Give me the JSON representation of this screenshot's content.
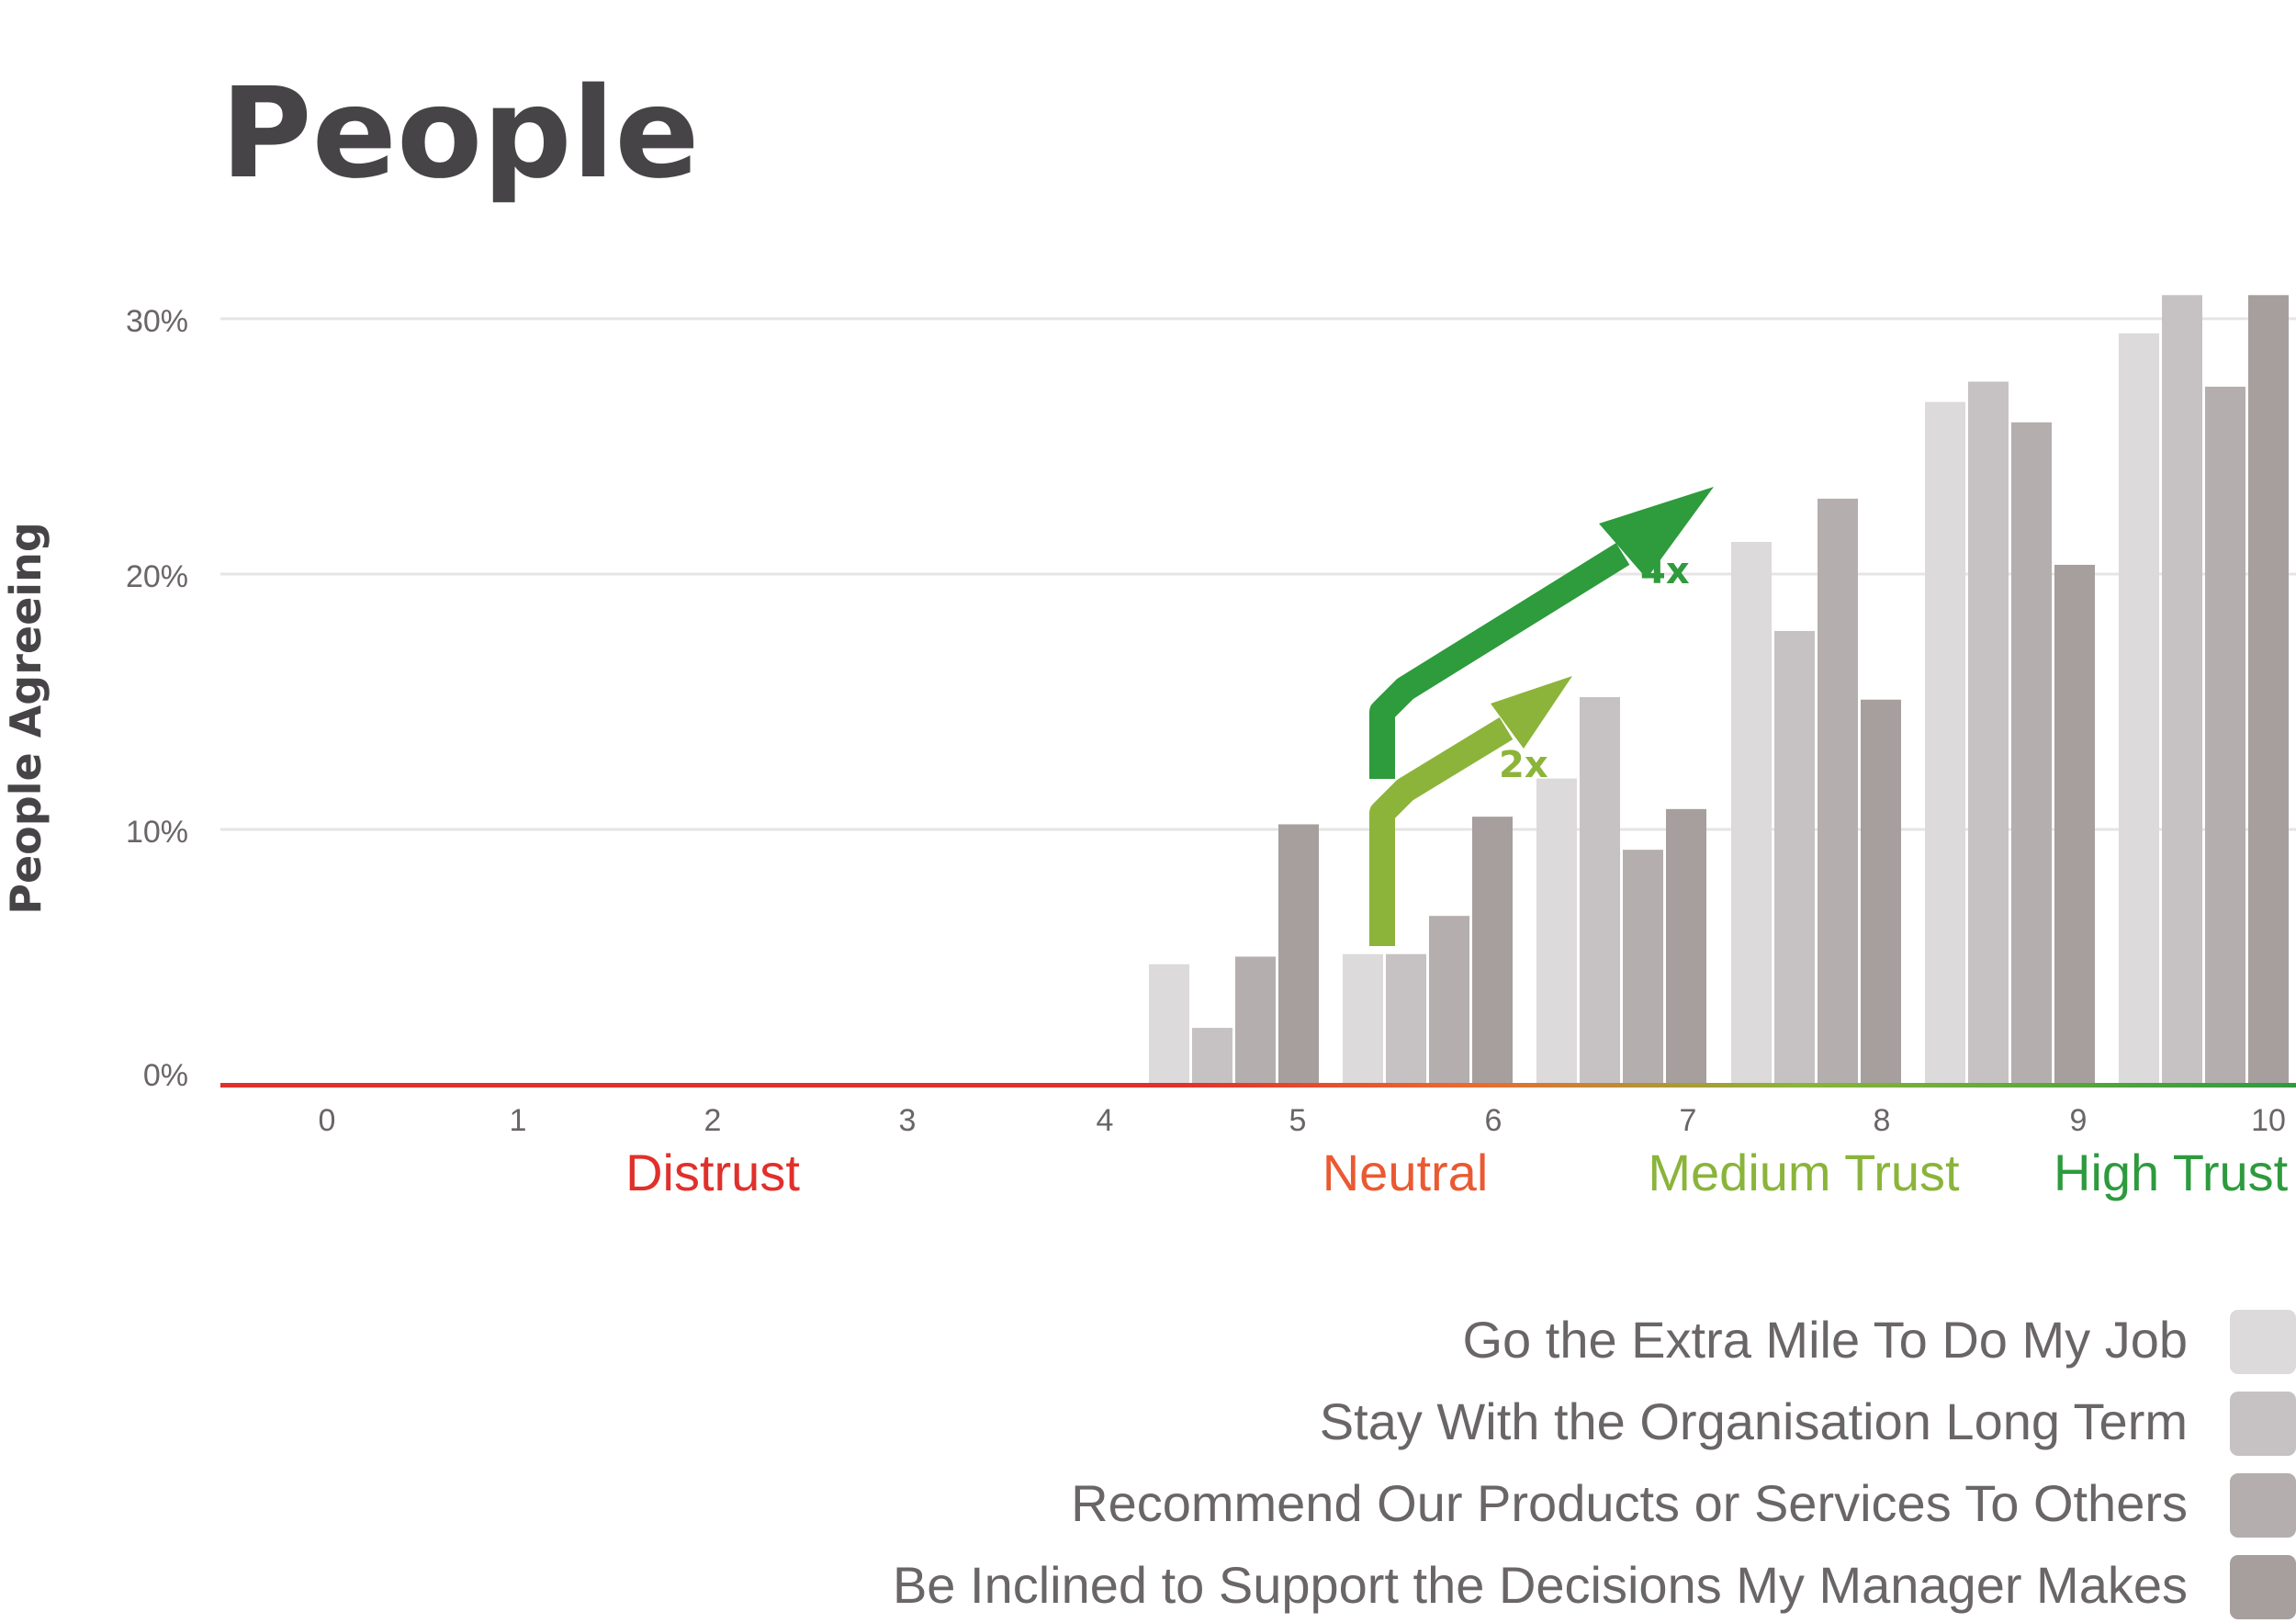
{
  "chart_data": {
    "type": "bar",
    "title": "People",
    "ylabel": "People Agreeing",
    "xlabel": "",
    "x_ticks": [
      "0",
      "1",
      "2",
      "3",
      "4",
      "5",
      "6",
      "7",
      "8",
      "9",
      "10"
    ],
    "y_ticks": [
      "0%",
      "10%",
      "20%",
      "30%"
    ],
    "ylim": [
      0,
      31
    ],
    "grid": true,
    "categories": [
      "5",
      "6",
      "7",
      "8",
      "9",
      "10"
    ],
    "series": [
      {
        "name": "Go the Extra Mile To Do My Job",
        "color": "#dcdadb",
        "values": [
          4.7,
          5.1,
          12.0,
          21.3,
          26.8,
          29.5
        ]
      },
      {
        "name": "Stay With the Organisation Long Term",
        "color": "#c6c2c3",
        "values": [
          2.2,
          5.1,
          15.2,
          17.8,
          27.6,
          31.0
        ]
      },
      {
        "name": "Recommend Our Products or Services To Others",
        "color": "#b4aeae",
        "values": [
          5.0,
          6.6,
          9.2,
          23.0,
          26.0,
          27.4
        ]
      },
      {
        "name": "Be Inclined to Support the Decisions My Manager Makes",
        "color": "#a69f9d",
        "values": [
          10.2,
          10.5,
          10.8,
          15.1,
          20.4,
          31.0
        ]
      }
    ],
    "zones": [
      {
        "label": "Distrust",
        "color": "#e0302b"
      },
      {
        "label": "Neutral",
        "color": "#ea5a32"
      },
      {
        "label": "Medium Trust",
        "color": "#8ab43a"
      },
      {
        "label": "High Trust",
        "color": "#2e9a3e"
      }
    ],
    "annotations": [
      {
        "label": "2x",
        "color": "#8cb43a"
      },
      {
        "label": "4x",
        "color": "#2e9b3c"
      }
    ],
    "legend": "bottom-right",
    "colors": {
      "title": "#474447",
      "axis_text": "#6a6567",
      "legend_text": "#6a6567",
      "gridline": "#e6e4e5"
    }
  }
}
